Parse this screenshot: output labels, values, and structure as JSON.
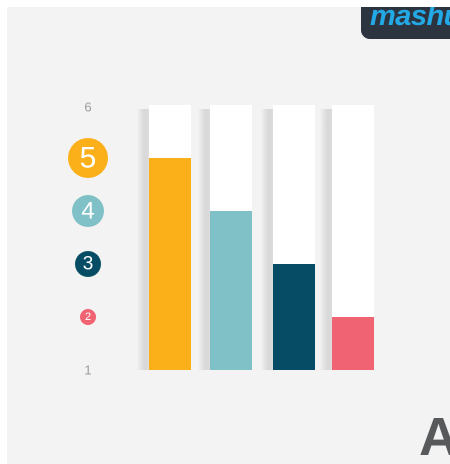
{
  "chart_data": {
    "type": "bar",
    "categories": [
      "5",
      "4",
      "3",
      "2"
    ],
    "values": [
      5.0,
      4.0,
      3.0,
      2.0
    ],
    "ylim": [
      1,
      6
    ],
    "ticks": [
      {
        "label": "6",
        "value": 6,
        "badge": false,
        "color": "#9b9b9b"
      },
      {
        "label": "5",
        "value": 5,
        "badge": true,
        "color": "#fbb01a"
      },
      {
        "label": "4",
        "value": 4,
        "badge": true,
        "color": "#7fc1c6"
      },
      {
        "label": "3",
        "value": 3,
        "badge": true,
        "color": "#064c65"
      },
      {
        "label": "2",
        "value": 2,
        "badge": true,
        "color": "#f06373"
      },
      {
        "label": "1",
        "value": 1,
        "badge": false,
        "color": "#9b9b9b"
      }
    ],
    "bar_colors": [
      "#fbb01a",
      "#7fc1c6",
      "#064c65",
      "#f06373"
    ],
    "track_color": "#ffffff",
    "grid": false,
    "title": "",
    "xlabel": "",
    "ylabel": ""
  },
  "branding": {
    "logo_text": "mashu",
    "corner_text": "A"
  }
}
